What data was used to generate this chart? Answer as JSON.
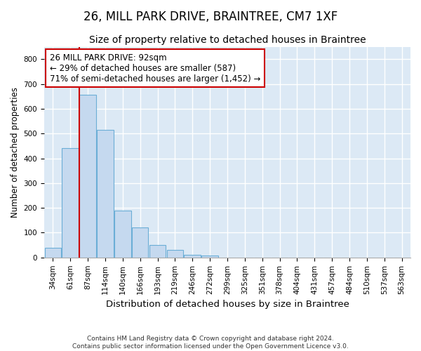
{
  "title": "26, MILL PARK DRIVE, BRAINTREE, CM7 1XF",
  "subtitle": "Size of property relative to detached houses in Braintree",
  "xlabel": "Distribution of detached houses by size in Braintree",
  "ylabel": "Number of detached properties",
  "categories": [
    "34sqm",
    "61sqm",
    "87sqm",
    "114sqm",
    "140sqm",
    "166sqm",
    "193sqm",
    "219sqm",
    "246sqm",
    "272sqm",
    "299sqm",
    "325sqm",
    "351sqm",
    "378sqm",
    "404sqm",
    "431sqm",
    "457sqm",
    "484sqm",
    "510sqm",
    "537sqm",
    "563sqm"
  ],
  "bar_heights": [
    40,
    440,
    655,
    515,
    190,
    120,
    50,
    30,
    10,
    8,
    0,
    0,
    0,
    0,
    0,
    0,
    0,
    0,
    0,
    0,
    0
  ],
  "bar_color": "#c5d9ef",
  "bar_edge_color": "#6baed6",
  "background_color": "#dce9f5",
  "grid_color": "#ffffff",
  "property_line_color": "#cc0000",
  "annotation_text": "26 MILL PARK DRIVE: 92sqm\n← 29% of detached houses are smaller (587)\n71% of semi-detached houses are larger (1,452) →",
  "annotation_box_color": "#ffffff",
  "annotation_box_edge": "#cc0000",
  "ylim": [
    0,
    850
  ],
  "yticks": [
    0,
    100,
    200,
    300,
    400,
    500,
    600,
    700,
    800
  ],
  "footer": "Contains HM Land Registry data © Crown copyright and database right 2024.\nContains public sector information licensed under the Open Government Licence v3.0.",
  "title_fontsize": 12,
  "subtitle_fontsize": 10,
  "xlabel_fontsize": 9.5,
  "ylabel_fontsize": 8.5,
  "tick_fontsize": 7.5,
  "annotation_fontsize": 8.5,
  "fig_bg": "#ffffff"
}
